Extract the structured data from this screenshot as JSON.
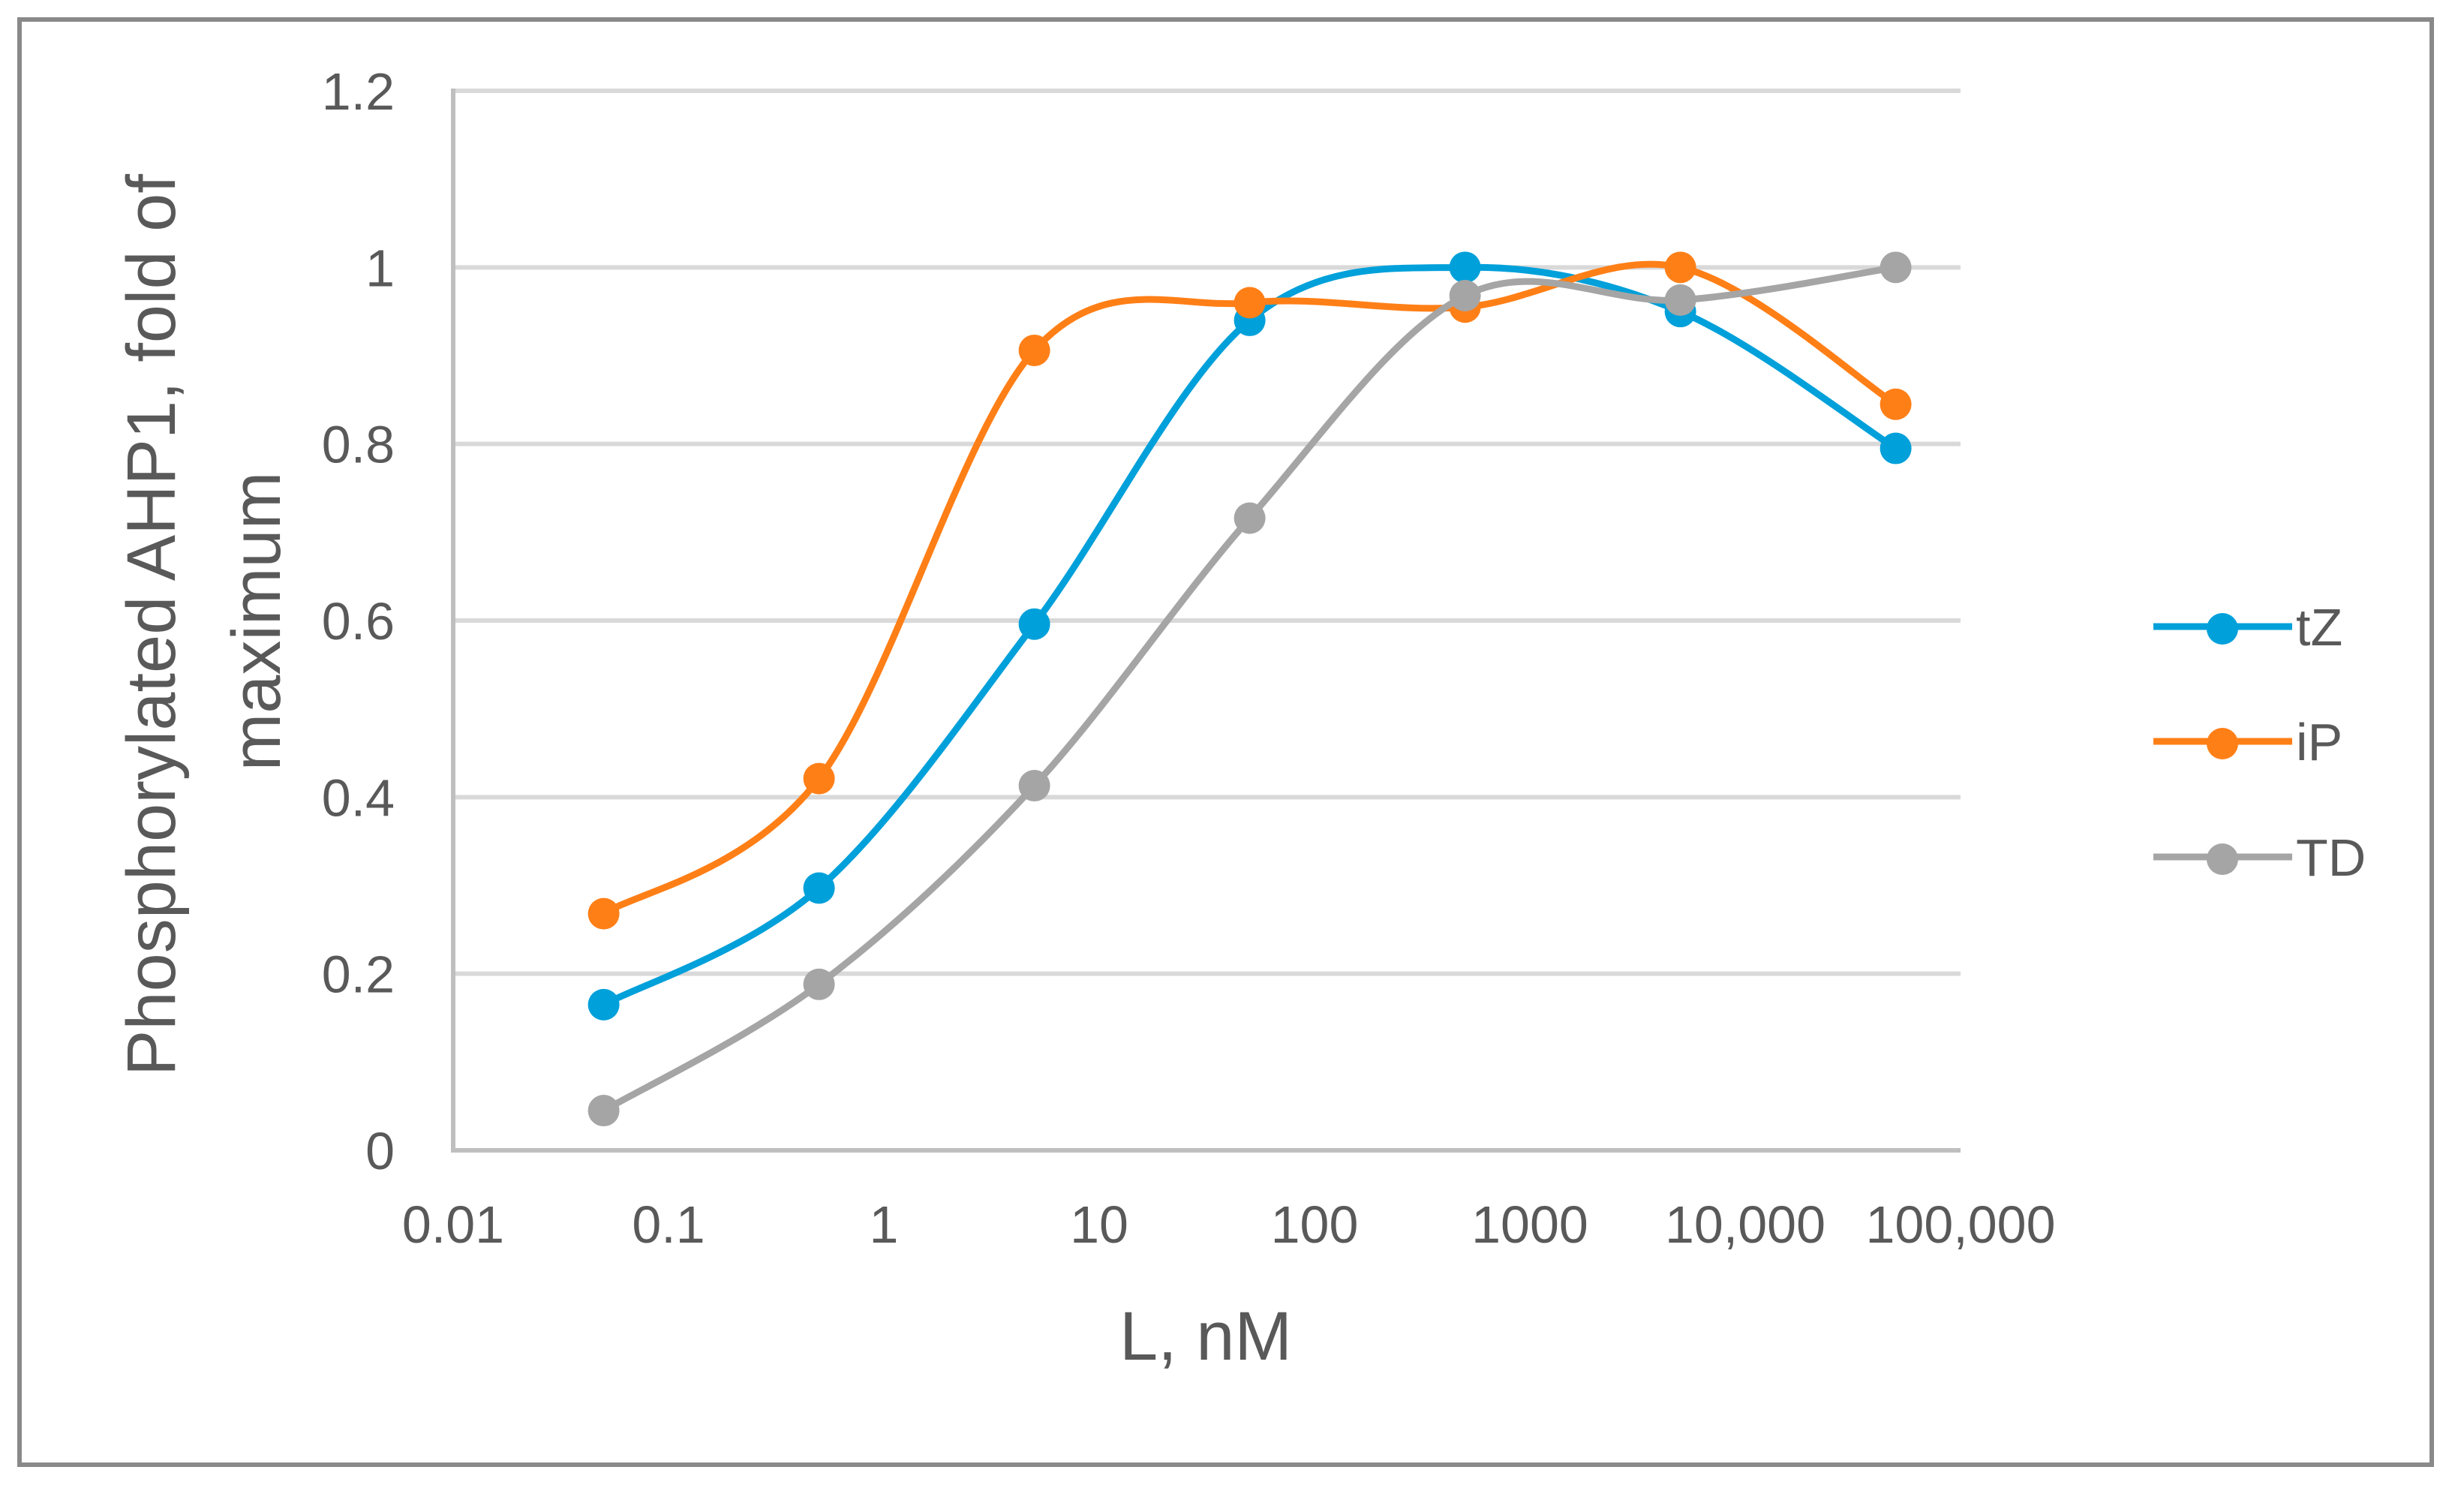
{
  "chart_data": {
    "type": "line",
    "title": "",
    "xlabel": "L, nM",
    "ylabel": "Phosphorylated AHP1, fold of maximum",
    "ylabel_lines": [
      "Phosphorylated AHP1, fold of",
      "maximum"
    ],
    "x_scale": "log",
    "xlim": [
      0.01,
      100000
    ],
    "ylim": [
      0,
      1.2
    ],
    "x_ticks": [
      0.01,
      0.1,
      1,
      10,
      100,
      1000,
      10000,
      100000
    ],
    "x_tick_labels": [
      "0.01",
      "0.1",
      "1",
      "10",
      "100",
      "1000",
      "10,000",
      "100,000"
    ],
    "y_ticks": [
      0,
      0.2,
      0.4,
      0.6,
      0.8,
      1,
      1.2
    ],
    "y_tick_labels": [
      "0",
      "0.2",
      "0.4",
      "0.6",
      "0.8",
      "1",
      "1.2"
    ],
    "grid": {
      "horizontal": true,
      "vertical": false
    },
    "legend_position": "right",
    "smoothed": true,
    "x": [
      0.05,
      0.5,
      5,
      50,
      500,
      5000,
      50000
    ],
    "series": [
      {
        "name": "tZ",
        "color": "#00A0DA",
        "values": [
          0.165,
          0.297,
          0.596,
          0.94,
          1.0,
          0.95,
          0.795
        ]
      },
      {
        "name": "iP",
        "color": "#FF7F17",
        "values": [
          0.268,
          0.421,
          0.906,
          0.96,
          0.955,
          1.0,
          0.845
        ]
      },
      {
        "name": "TD",
        "color": "#A5A5A5",
        "values": [
          0.045,
          0.188,
          0.413,
          0.716,
          0.968,
          0.963,
          1.0
        ]
      }
    ]
  },
  "colors": {
    "gridline": "#D9D9D9",
    "axis": "#BFBFBF",
    "frame": "#898989",
    "text": "#595959"
  }
}
